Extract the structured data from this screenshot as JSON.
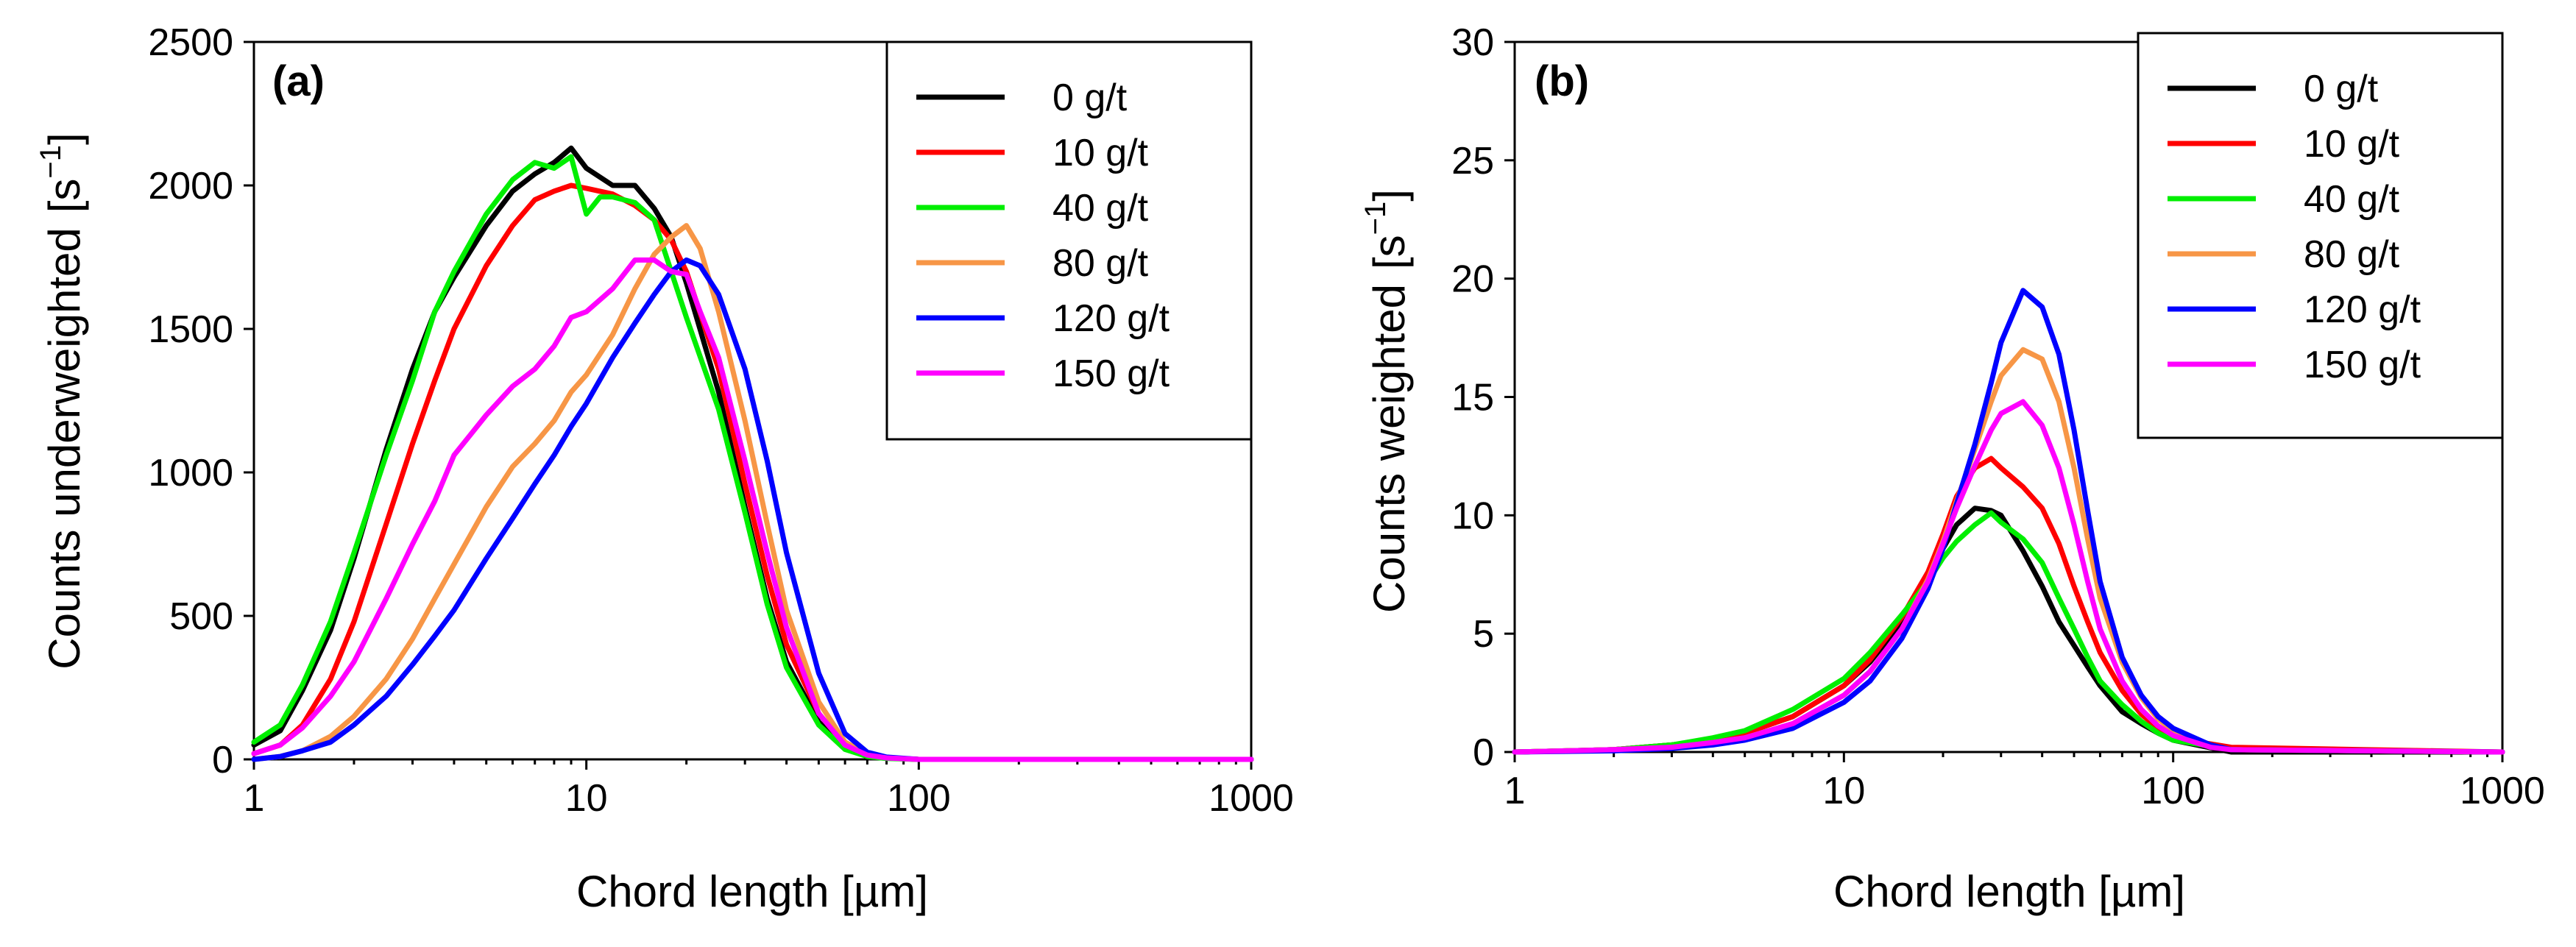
{
  "chart_data": [
    {
      "type": "line",
      "panel_label": "(a)",
      "xlabel": "Chord length [µm]",
      "ylabel": "Counts underweighted",
      "ylabel_unit": "[s",
      "ylabel_sup": "−1",
      "ylabel_unit_end": "]",
      "xscale": "log",
      "xlim": [
        1,
        1000
      ],
      "ylim": [
        0,
        2500
      ],
      "xticks": [
        1,
        10,
        100,
        1000
      ],
      "xtick_labels": [
        "1",
        "10",
        "100",
        "1000"
      ],
      "yticks": [
        0,
        500,
        1000,
        1500,
        2000,
        2500
      ],
      "ytick_labels": [
        "0",
        "500",
        "1000",
        "1500",
        "2000",
        "2500"
      ],
      "legend_position": "top-right",
      "series": [
        {
          "name": "0 g/t",
          "color": "#000000",
          "x": [
            1,
            1.2,
            1.4,
            1.7,
            2,
            2.5,
            3,
            3.5,
            4,
            5,
            6,
            7,
            8,
            9,
            10,
            12,
            14,
            16,
            18,
            20,
            25,
            30,
            35,
            40,
            50,
            60,
            70,
            80,
            100,
            150,
            1000
          ],
          "values": [
            50,
            100,
            240,
            450,
            700,
            1080,
            1360,
            1560,
            1680,
            1860,
            1980,
            2040,
            2080,
            2130,
            2060,
            2000,
            2000,
            1920,
            1820,
            1660,
            1280,
            880,
            560,
            340,
            130,
            40,
            12,
            4,
            0,
            0,
            0
          ]
        },
        {
          "name": "10 g/t",
          "color": "#ff0000",
          "x": [
            1,
            1.2,
            1.4,
            1.7,
            2,
            2.5,
            3,
            3.5,
            4,
            5,
            6,
            7,
            8,
            9,
            10,
            12,
            14,
            16,
            18,
            20,
            25,
            30,
            35,
            40,
            50,
            60,
            70,
            80,
            100,
            150,
            1000
          ],
          "values": [
            20,
            50,
            120,
            280,
            480,
            820,
            1100,
            1320,
            1500,
            1720,
            1860,
            1950,
            1980,
            2000,
            1990,
            1970,
            1930,
            1880,
            1810,
            1700,
            1360,
            960,
            640,
            400,
            160,
            50,
            15,
            5,
            0,
            0,
            0
          ]
        },
        {
          "name": "40 g/t",
          "color": "#00ee00",
          "x": [
            1,
            1.2,
            1.4,
            1.7,
            2,
            2.5,
            3,
            3.5,
            4,
            5,
            6,
            7,
            8,
            9,
            10,
            11,
            12,
            14,
            16,
            18,
            20,
            25,
            30,
            35,
            40,
            50,
            60,
            70,
            80,
            100,
            1000
          ],
          "values": [
            60,
            120,
            260,
            480,
            720,
            1060,
            1320,
            1560,
            1700,
            1900,
            2020,
            2080,
            2060,
            2100,
            1900,
            1960,
            1960,
            1940,
            1880,
            1700,
            1540,
            1220,
            860,
            540,
            320,
            120,
            35,
            10,
            3,
            0,
            0
          ]
        },
        {
          "name": "80 g/t",
          "color": "#f79646",
          "x": [
            1,
            1.2,
            1.4,
            1.7,
            2,
            2.5,
            3,
            3.5,
            4,
            5,
            6,
            7,
            8,
            9,
            10,
            12,
            14,
            16,
            18,
            20,
            22,
            25,
            30,
            35,
            40,
            50,
            60,
            70,
            80,
            100,
            150,
            1000
          ],
          "values": [
            0,
            10,
            30,
            80,
            150,
            280,
            420,
            560,
            680,
            880,
            1020,
            1100,
            1180,
            1280,
            1340,
            1480,
            1640,
            1760,
            1820,
            1860,
            1780,
            1560,
            1180,
            820,
            520,
            200,
            60,
            20,
            6,
            0,
            0,
            0
          ]
        },
        {
          "name": "120 g/t",
          "color": "#0000ff",
          "x": [
            1,
            1.2,
            1.4,
            1.7,
            2,
            2.5,
            3,
            3.5,
            4,
            5,
            6,
            7,
            8,
            9,
            10,
            12,
            14,
            16,
            18,
            20,
            22,
            25,
            30,
            35,
            40,
            50,
            60,
            70,
            80,
            100,
            150,
            1000
          ],
          "values": [
            0,
            10,
            30,
            60,
            120,
            220,
            330,
            430,
            520,
            700,
            840,
            960,
            1060,
            1160,
            1240,
            1400,
            1520,
            1620,
            1700,
            1740,
            1720,
            1620,
            1360,
            1040,
            720,
            300,
            90,
            25,
            8,
            0,
            0,
            0
          ]
        },
        {
          "name": "150 g/t",
          "color": "#ff00ff",
          "x": [
            1,
            1.2,
            1.4,
            1.7,
            2,
            2.5,
            3,
            3.5,
            4,
            5,
            6,
            7,
            8,
            9,
            10,
            12,
            14,
            16,
            18,
            20,
            22,
            25,
            30,
            35,
            40,
            50,
            60,
            70,
            80,
            100,
            150,
            1000
          ],
          "values": [
            20,
            50,
            110,
            220,
            340,
            560,
            750,
            900,
            1060,
            1200,
            1300,
            1360,
            1440,
            1540,
            1560,
            1640,
            1740,
            1740,
            1700,
            1690,
            1560,
            1400,
            1040,
            720,
            460,
            160,
            50,
            15,
            5,
            0,
            0,
            0
          ]
        }
      ]
    },
    {
      "type": "line",
      "panel_label": "(b)",
      "xlabel": "Chord length [µm]",
      "ylabel": "Counts weighted",
      "ylabel_unit": "[s",
      "ylabel_sup": "−1",
      "ylabel_unit_end": "]",
      "xscale": "log",
      "xlim": [
        1,
        1000
      ],
      "ylim": [
        0,
        30
      ],
      "xticks": [
        1,
        10,
        100,
        1000
      ],
      "xtick_labels": [
        "1",
        "10",
        "100",
        "1000"
      ],
      "yticks": [
        0,
        5,
        10,
        15,
        20,
        25,
        30
      ],
      "ytick_labels": [
        "0",
        "5",
        "10",
        "15",
        "20",
        "25",
        "30"
      ],
      "legend_position": "top-right",
      "series": [
        {
          "name": "0 g/t",
          "color": "#000000",
          "x": [
            1,
            2,
            3,
            4,
            5,
            7,
            10,
            12,
            15,
            18,
            20,
            22,
            25,
            28,
            30,
            35,
            40,
            45,
            50,
            55,
            60,
            70,
            80,
            90,
            100,
            150,
            1000
          ],
          "values": [
            0,
            0.1,
            0.3,
            0.5,
            0.8,
            1.5,
            2.8,
            3.8,
            5.5,
            7.3,
            8.6,
            9.6,
            10.3,
            10.2,
            10.0,
            8.5,
            7.0,
            5.5,
            4.5,
            3.6,
            2.8,
            1.7,
            1.2,
            0.8,
            0.5,
            0,
            0
          ]
        },
        {
          "name": "10 g/t",
          "color": "#ff0000",
          "x": [
            1,
            2,
            3,
            4,
            5,
            7,
            10,
            12,
            15,
            18,
            20,
            22,
            25,
            28,
            30,
            35,
            40,
            45,
            50,
            55,
            60,
            70,
            80,
            90,
            100,
            150,
            1000
          ],
          "values": [
            0,
            0.1,
            0.3,
            0.5,
            0.8,
            1.5,
            2.8,
            3.9,
            5.7,
            7.6,
            9.2,
            10.8,
            12.0,
            12.4,
            12.0,
            11.2,
            10.3,
            8.8,
            7.0,
            5.5,
            4.2,
            2.6,
            1.6,
            1.0,
            0.6,
            0.2,
            0
          ]
        },
        {
          "name": "40 g/t",
          "color": "#00ee00",
          "x": [
            1,
            2,
            3,
            4,
            5,
            7,
            10,
            12,
            15,
            18,
            20,
            22,
            25,
            28,
            30,
            35,
            40,
            45,
            50,
            55,
            60,
            70,
            80,
            90,
            100,
            150,
            1000
          ],
          "values": [
            0,
            0.1,
            0.3,
            0.6,
            0.9,
            1.8,
            3.1,
            4.2,
            5.8,
            7.2,
            8.2,
            8.9,
            9.6,
            10.1,
            9.7,
            9.0,
            8.0,
            6.5,
            5.2,
            4.0,
            3.0,
            2.0,
            1.3,
            0.8,
            0.5,
            0.1,
            0
          ]
        },
        {
          "name": "80 g/t",
          "color": "#f79646",
          "x": [
            1,
            2,
            3,
            4,
            5,
            7,
            10,
            12,
            15,
            18,
            20,
            22,
            25,
            28,
            30,
            35,
            40,
            45,
            50,
            55,
            60,
            70,
            80,
            90,
            100,
            130,
            150,
            1000
          ],
          "values": [
            0,
            0.1,
            0.2,
            0.4,
            0.6,
            1.2,
            2.4,
            3.4,
            5.2,
            7.3,
            8.9,
            10.6,
            12.8,
            14.8,
            15.9,
            17.0,
            16.6,
            14.8,
            12.0,
            9.0,
            6.5,
            3.8,
            2.3,
            1.4,
            0.9,
            0.3,
            0.1,
            0
          ]
        },
        {
          "name": "120 g/t",
          "color": "#0000ff",
          "x": [
            1,
            2,
            3,
            4,
            5,
            7,
            10,
            12,
            15,
            18,
            20,
            22,
            25,
            28,
            30,
            35,
            40,
            45,
            50,
            55,
            60,
            70,
            80,
            90,
            100,
            130,
            150,
            1000
          ],
          "values": [
            0,
            0.05,
            0.15,
            0.3,
            0.5,
            1.0,
            2.1,
            3.0,
            4.8,
            6.9,
            8.6,
            10.5,
            13.0,
            15.6,
            17.3,
            19.5,
            18.8,
            16.8,
            13.6,
            10.2,
            7.2,
            4.0,
            2.4,
            1.5,
            1.0,
            0.3,
            0.1,
            0
          ]
        },
        {
          "name": "150 g/t",
          "color": "#ff00ff",
          "x": [
            1,
            2,
            3,
            4,
            5,
            7,
            10,
            12,
            15,
            18,
            20,
            22,
            25,
            28,
            30,
            35,
            40,
            45,
            50,
            55,
            60,
            70,
            80,
            90,
            100,
            130,
            150,
            1000
          ],
          "values": [
            0,
            0.1,
            0.2,
            0.4,
            0.6,
            1.2,
            2.4,
            3.4,
            5.2,
            7.2,
            8.8,
            10.3,
            12.1,
            13.6,
            14.3,
            14.8,
            13.8,
            12.0,
            9.6,
            7.2,
            5.2,
            3.0,
            1.8,
            1.1,
            0.7,
            0.2,
            0.1,
            0
          ]
        }
      ]
    }
  ]
}
